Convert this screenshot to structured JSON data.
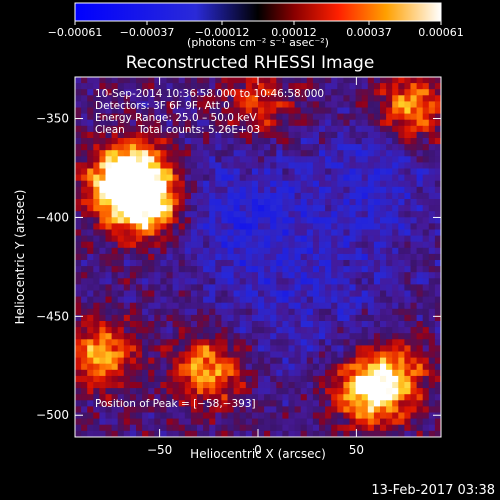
{
  "chart_data": {
    "type": "heatmap",
    "title": "Reconstructed RHESSI Image",
    "xlabel": "Heliocentric X (arcsec)",
    "ylabel": "Heliocentric Y (arcsec)",
    "xlim": [
      -93,
      93
    ],
    "ylim": [
      -511,
      -329
    ],
    "x_ticks": [
      -50,
      0,
      50
    ],
    "y_ticks": [
      -350,
      -400,
      -450,
      -500
    ],
    "x_tick_labels": [
      "−50",
      "0",
      "50"
    ],
    "y_tick_labels": [
      "−350",
      "−400",
      "−450",
      "−500"
    ],
    "colorbar": {
      "range": [
        -0.00061,
        0.00061
      ],
      "ticks": [
        -0.00061,
        -0.00037,
        -0.00012,
        0.00012,
        0.00037,
        0.00061
      ],
      "tick_labels": [
        "−0.00061",
        "−0.00037",
        "−0.00012",
        "0.00012",
        "0.00037",
        "0.00061"
      ],
      "units_label": "(photons cm⁻² s⁻¹ asec⁻²)"
    },
    "annotations": [
      "10‑Sep‑2014 10:36:58.000 to 10:46:58.000",
      "Detectors: 3F 6F 9F, Att 0",
      "Energy Range: 25.0 – 50.0 keV",
      "Clean    Total counts: 5.26E+03"
    ],
    "peak_label": "Position of Peak = [−58,−393]",
    "peak": [
      -58,
      -393
    ],
    "sources": [
      {
        "x": -58,
        "y": -393,
        "level": 1.0
      },
      {
        "x": -72,
        "y": -382,
        "level": 0.7
      },
      {
        "x": -60,
        "y": -378,
        "level": 0.6
      },
      {
        "x": -25,
        "y": -477,
        "level": 0.75
      },
      {
        "x": -80,
        "y": -470,
        "level": 0.7
      },
      {
        "x": 55,
        "y": -488,
        "level": 0.85
      },
      {
        "x": 70,
        "y": -480,
        "level": 0.6
      },
      {
        "x": 78,
        "y": -345,
        "level": 0.7
      },
      {
        "x": 0,
        "y": -343,
        "level": 0.45
      }
    ]
  },
  "footer": {
    "date": "13-Feb-2017 03:38"
  }
}
